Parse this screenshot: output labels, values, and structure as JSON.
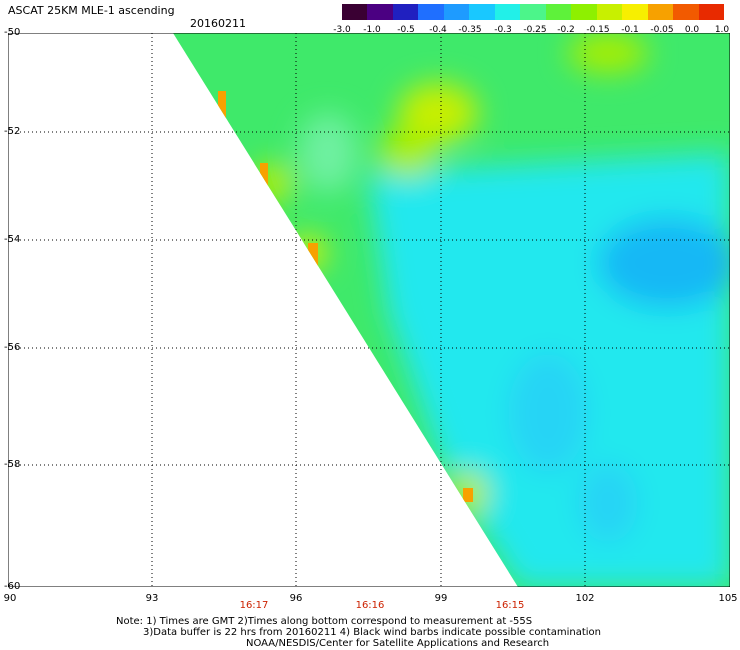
{
  "title": "ASCAT 25KM MLE-1 ascending",
  "date": "20160211",
  "colorbar": {
    "labels": [
      "-3.0",
      "-1.0",
      "-0.5",
      "-0.4",
      "-0.35",
      "-0.3",
      "-0.25",
      "-0.2",
      "-0.15",
      "-0.1",
      "-0.05",
      "0.0",
      "1.0"
    ],
    "colors": [
      "#3a0033",
      "#4b0082",
      "#2020c0",
      "#1f6fff",
      "#1e9bff",
      "#19c8ff",
      "#22f0e8",
      "#4cf58a",
      "#5ef23a",
      "#8ef000",
      "#c8f000",
      "#f7ef00",
      "#f7a100",
      "#f25a00",
      "#e82a00"
    ]
  },
  "axes": {
    "lat_labels": [
      "-50",
      "-52",
      "-54",
      "-56",
      "-58",
      "-60"
    ],
    "lon_labels": [
      "90",
      "93",
      "96",
      "99",
      "102",
      "105"
    ],
    "time_labels": [
      "16:17",
      "16:16",
      "16:15"
    ]
  },
  "notes": [
    "Note: 1) Times are GMT 2)Times along bottom correspond to measurement at -55S",
    "3)Data buffer is 22 hrs from 20160211 4) Black wind barbs indicate possible contamination",
    "NOAA/NESDIS/Center for Satellite Applications and Research"
  ]
}
